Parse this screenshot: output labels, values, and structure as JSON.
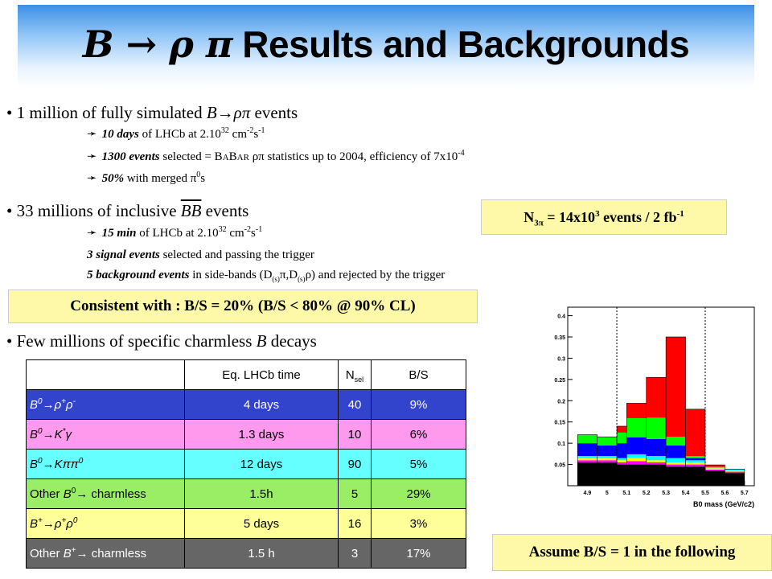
{
  "title": {
    "main": "Results and Backgrounds",
    "symbol": "B → ρ π"
  },
  "bullet1": {
    "text_a": "1 million of fully simulated ",
    "text_b": "B→ρπ",
    "text_c": " events",
    "sub1": {
      "bold": "10 days",
      "text": " of LHCb at 2.10",
      "exp": "32",
      "unit": " cm",
      "unit_exp1": "-2",
      "unit2": "s",
      "unit_exp2": "-1"
    },
    "sub2": {
      "bold": "1300 events",
      "text": " selected  = B",
      "babar": "A",
      "b2": "B",
      "ar": "AR",
      "text2": " ρπ statistics up to 2004, efficiency of 7x10",
      "exp": "-4"
    },
    "sub3": {
      "bold": "50%",
      "text": " with merged π",
      "exp": "0",
      "tail": "s"
    }
  },
  "bullet2": {
    "text_a": "33 millions of inclusive ",
    "text_b": "BB",
    "text_c": " events",
    "sub1": {
      "bold": "15 min",
      "text": " of LHCb at 2.10",
      "exp": "32",
      "unit": " cm",
      "unit_exp1": "-2",
      "unit2": "s",
      "unit_exp2": "-1"
    },
    "sub2": {
      "bold": "3 signal events",
      "text": " selected and passing the trigger"
    },
    "sub3": {
      "bold": "5 background events",
      "text": " in side-bands (D",
      "s1": "(s)",
      "t2": "π,D",
      "s2": "(s)",
      "t3": "ρ) and rejected by the trigger"
    }
  },
  "n3pi_box": {
    "n": "N",
    "sub": "3π",
    "text": " = 14x10",
    "exp": "3",
    "tail": " events / 2 fb",
    "exp2": "-1"
  },
  "consistent_box": "Consistent with : B/S = 20%    (B/S < 80% @ 90% CL)",
  "bullet3": {
    "text_a": "Few millions of specific charmless ",
    "text_b": "B",
    "text_c": " decays"
  },
  "assume_box": "Assume B/S = 1 in the following",
  "table": {
    "headers": [
      "",
      "Eq. LHCb time",
      "N",
      "B/S"
    ],
    "nsel_sub": "sel",
    "rows": [
      {
        "name": "B0→ρ+ρ-",
        "time": "4 days",
        "n": "40",
        "bs": "9%",
        "bg": "#3344cc",
        "fg": "#ffffff"
      },
      {
        "name": "B0→K*γ",
        "time": "1.3 days",
        "n": "10",
        "bs": "6%",
        "bg": "#ff99ee",
        "fg": "#000000"
      },
      {
        "name": "B0→Kππ0",
        "time": "12 days",
        "n": "90",
        "bs": "5%",
        "bg": "#66ffff",
        "fg": "#000000"
      },
      {
        "name": "Other B0→ charmless",
        "time": "1.5h",
        "n": "5",
        "bs": "29%",
        "bg": "#99ee66",
        "fg": "#000000"
      },
      {
        "name": "B+→ρ+ρ0",
        "time": "5 days",
        "n": "16",
        "bs": "3%",
        "bg": "#ffff99",
        "fg": "#000000"
      },
      {
        "name": "Other B+→ charmless",
        "time": "1.5 h",
        "n": "3",
        "bs": "17%",
        "bg": "#666666",
        "fg": "#ffffff"
      }
    ]
  },
  "chart_data": {
    "type": "bar",
    "stacked": true,
    "xlabel": "B0 mass (GeV/c2)",
    "x_ticks": [
      "4.9",
      "5",
      "5.1",
      "5.2",
      "5.3",
      "5.4",
      "5.5",
      "5.6",
      "5.7"
    ],
    "y_ticks": [
      "0.05",
      "0.1",
      "0.15",
      "0.2",
      "0.25",
      "0.3",
      "0.35",
      "0.4"
    ],
    "xlim": [
      4.8,
      5.75
    ],
    "ylim": [
      0,
      0.42
    ],
    "bin_edges": [
      4.85,
      4.95,
      5.05,
      5.1,
      5.2,
      5.3,
      5.4,
      5.5,
      5.6,
      5.7
    ],
    "series": [
      {
        "color": "#000000",
        "values": [
          0.055,
          0.055,
          0.05,
          0.05,
          0.05,
          0.045,
          0.045,
          0.035,
          0.03
        ]
      },
      {
        "color": "#ff00ff",
        "values": [
          0.005,
          0.005,
          0.005,
          0.008,
          0.005,
          0.005,
          0.005,
          0.003,
          0.003
        ]
      },
      {
        "color": "#ffff00",
        "values": [
          0.005,
          0.005,
          0.005,
          0.008,
          0.005,
          0.005,
          0.005,
          0.003,
          0.003
        ]
      },
      {
        "color": "#00ffff",
        "values": [
          0.005,
          0.005,
          0.005,
          0.008,
          0.01,
          0.01,
          0.005,
          0.003,
          0.003
        ]
      },
      {
        "color": "#0000ff",
        "values": [
          0.03,
          0.025,
          0.035,
          0.04,
          0.04,
          0.03,
          0.005,
          0.0,
          0.0
        ]
      },
      {
        "color": "#00ff00",
        "values": [
          0.02,
          0.02,
          0.025,
          0.045,
          0.05,
          0.02,
          0.005,
          0.0,
          0.0
        ]
      },
      {
        "color": "#ff0000",
        "values": [
          0.0,
          0.0,
          0.015,
          0.035,
          0.095,
          0.235,
          0.11,
          0.005,
          0.0
        ]
      }
    ],
    "cut_lines": [
      5.05,
      5.5
    ]
  }
}
